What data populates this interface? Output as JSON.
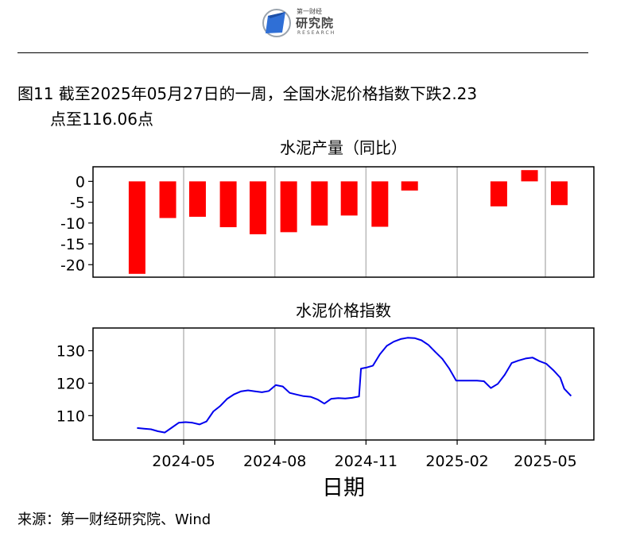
{
  "header": {
    "logo_top": "第一财经",
    "logo_cn": "研究院",
    "logo_en": "RESEARCH",
    "brand_color": "#2f6fd6"
  },
  "figure": {
    "title_line1": "图11  截至2025年05月27日的一周，全国水泥价格指数下跌2.23",
    "title_line2": "点至116.06点"
  },
  "source": "来源：第一财经研究院、Wind",
  "chart_data": [
    {
      "type": "bar",
      "title": "水泥产量（同比）",
      "x": [
        "2024-03",
        "2024-04",
        "2024-05",
        "2024-06",
        "2024-07",
        "2024-08",
        "2024-09",
        "2024-10",
        "2024-11",
        "2024-12",
        "2025-03",
        "2025-04",
        "2025-05"
      ],
      "values": [
        -22.2,
        -8.8,
        -8.5,
        -11.0,
        -12.7,
        -12.2,
        -10.6,
        -8.2,
        -10.9,
        -2.2,
        -6.0,
        2.7,
        -5.7
      ],
      "yticks": [
        0,
        -5,
        -10,
        -15,
        -20
      ],
      "ylim": [
        -23,
        3.5
      ],
      "color": "#ff0000"
    },
    {
      "type": "line",
      "title": "水泥价格指数",
      "xlabel": "日期",
      "xticks": [
        "2024-05",
        "2024-08",
        "2024-11",
        "2025-02",
        "2025-05"
      ],
      "yticks": [
        110,
        120,
        130
      ],
      "ylim": [
        102.5,
        137
      ],
      "color": "#0000ee",
      "points": [
        [
          "2024-03-15",
          106.2
        ],
        [
          "2024-03-22",
          106.0
        ],
        [
          "2024-03-29",
          105.8
        ],
        [
          "2024-04-05",
          105.2
        ],
        [
          "2024-04-12",
          104.8
        ],
        [
          "2024-04-19",
          106.3
        ],
        [
          "2024-04-26",
          107.8
        ],
        [
          "2024-05-03",
          108.0
        ],
        [
          "2024-05-10",
          107.8
        ],
        [
          "2024-05-17",
          107.3
        ],
        [
          "2024-05-24",
          108.2
        ],
        [
          "2024-05-31",
          111.3
        ],
        [
          "2024-06-07",
          113.0
        ],
        [
          "2024-06-14",
          115.2
        ],
        [
          "2024-06-21",
          116.6
        ],
        [
          "2024-06-28",
          117.5
        ],
        [
          "2024-07-05",
          117.8
        ],
        [
          "2024-07-12",
          117.5
        ],
        [
          "2024-07-19",
          117.2
        ],
        [
          "2024-07-26",
          117.6
        ],
        [
          "2024-08-02",
          119.4
        ],
        [
          "2024-08-09",
          119.0
        ],
        [
          "2024-08-16",
          117.0
        ],
        [
          "2024-08-23",
          116.5
        ],
        [
          "2024-08-30",
          116.0
        ],
        [
          "2024-09-06",
          115.8
        ],
        [
          "2024-09-13",
          115.0
        ],
        [
          "2024-09-20",
          113.7
        ],
        [
          "2024-09-27",
          115.2
        ],
        [
          "2024-10-04",
          115.4
        ],
        [
          "2024-10-11",
          115.3
        ],
        [
          "2024-10-18",
          115.5
        ],
        [
          "2024-10-25",
          115.9
        ],
        [
          "2024-10-27",
          124.5
        ],
        [
          "2024-11-01",
          124.8
        ],
        [
          "2024-11-08",
          125.4
        ],
        [
          "2024-11-15",
          128.9
        ],
        [
          "2024-11-22",
          131.5
        ],
        [
          "2024-11-29",
          132.8
        ],
        [
          "2024-12-06",
          133.6
        ],
        [
          "2024-12-13",
          134.0
        ],
        [
          "2024-12-20",
          133.9
        ],
        [
          "2024-12-27",
          133.2
        ],
        [
          "2025-01-03",
          131.8
        ],
        [
          "2025-01-10",
          129.6
        ],
        [
          "2025-01-17",
          127.5
        ],
        [
          "2025-01-24",
          124.5
        ],
        [
          "2025-01-31",
          120.8
        ],
        [
          "2025-02-07",
          120.8
        ],
        [
          "2025-02-14",
          120.8
        ],
        [
          "2025-02-21",
          120.8
        ],
        [
          "2025-02-28",
          120.6
        ],
        [
          "2025-03-07",
          118.5
        ],
        [
          "2025-03-14",
          119.8
        ],
        [
          "2025-03-21",
          122.6
        ],
        [
          "2025-03-28",
          126.2
        ],
        [
          "2025-04-04",
          127.0
        ],
        [
          "2025-04-11",
          127.6
        ],
        [
          "2025-04-18",
          127.9
        ],
        [
          "2025-04-25",
          126.8
        ],
        [
          "2025-05-02",
          126.0
        ],
        [
          "2025-05-09",
          124.0
        ],
        [
          "2025-05-16",
          121.7
        ],
        [
          "2025-05-20",
          118.3
        ],
        [
          "2025-05-27",
          116.06
        ]
      ]
    }
  ]
}
